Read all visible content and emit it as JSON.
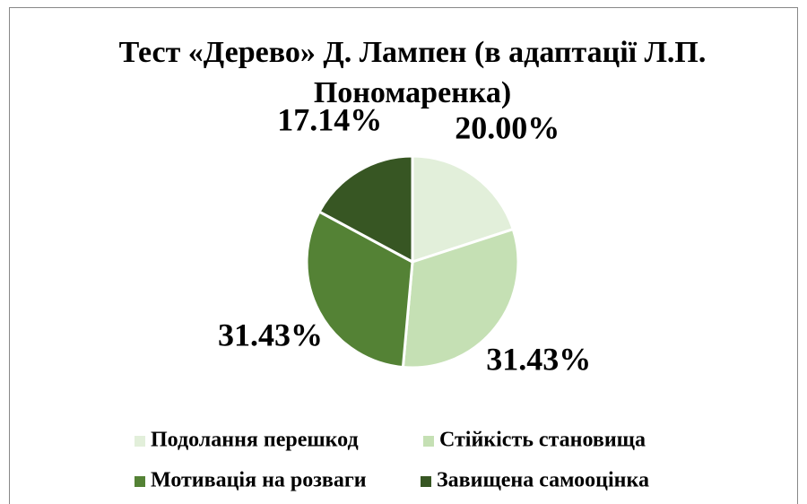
{
  "chart_data": {
    "type": "pie",
    "title": "Тест «Дерево» Д. Лампен (в адаптації Л.П. Пономаренка)",
    "categories": [
      "Подолання перешкод",
      "Стійкість становища",
      "Мотивація на розваги",
      "Завищена самооцінка"
    ],
    "values": [
      20.0,
      31.43,
      31.43,
      17.14
    ],
    "value_labels": [
      "20.00%",
      "31.43%",
      "31.43%",
      "17.14%"
    ],
    "colors": [
      "#e2efda",
      "#c5e0b4",
      "#548235",
      "#375623"
    ],
    "legend": "bottom"
  }
}
